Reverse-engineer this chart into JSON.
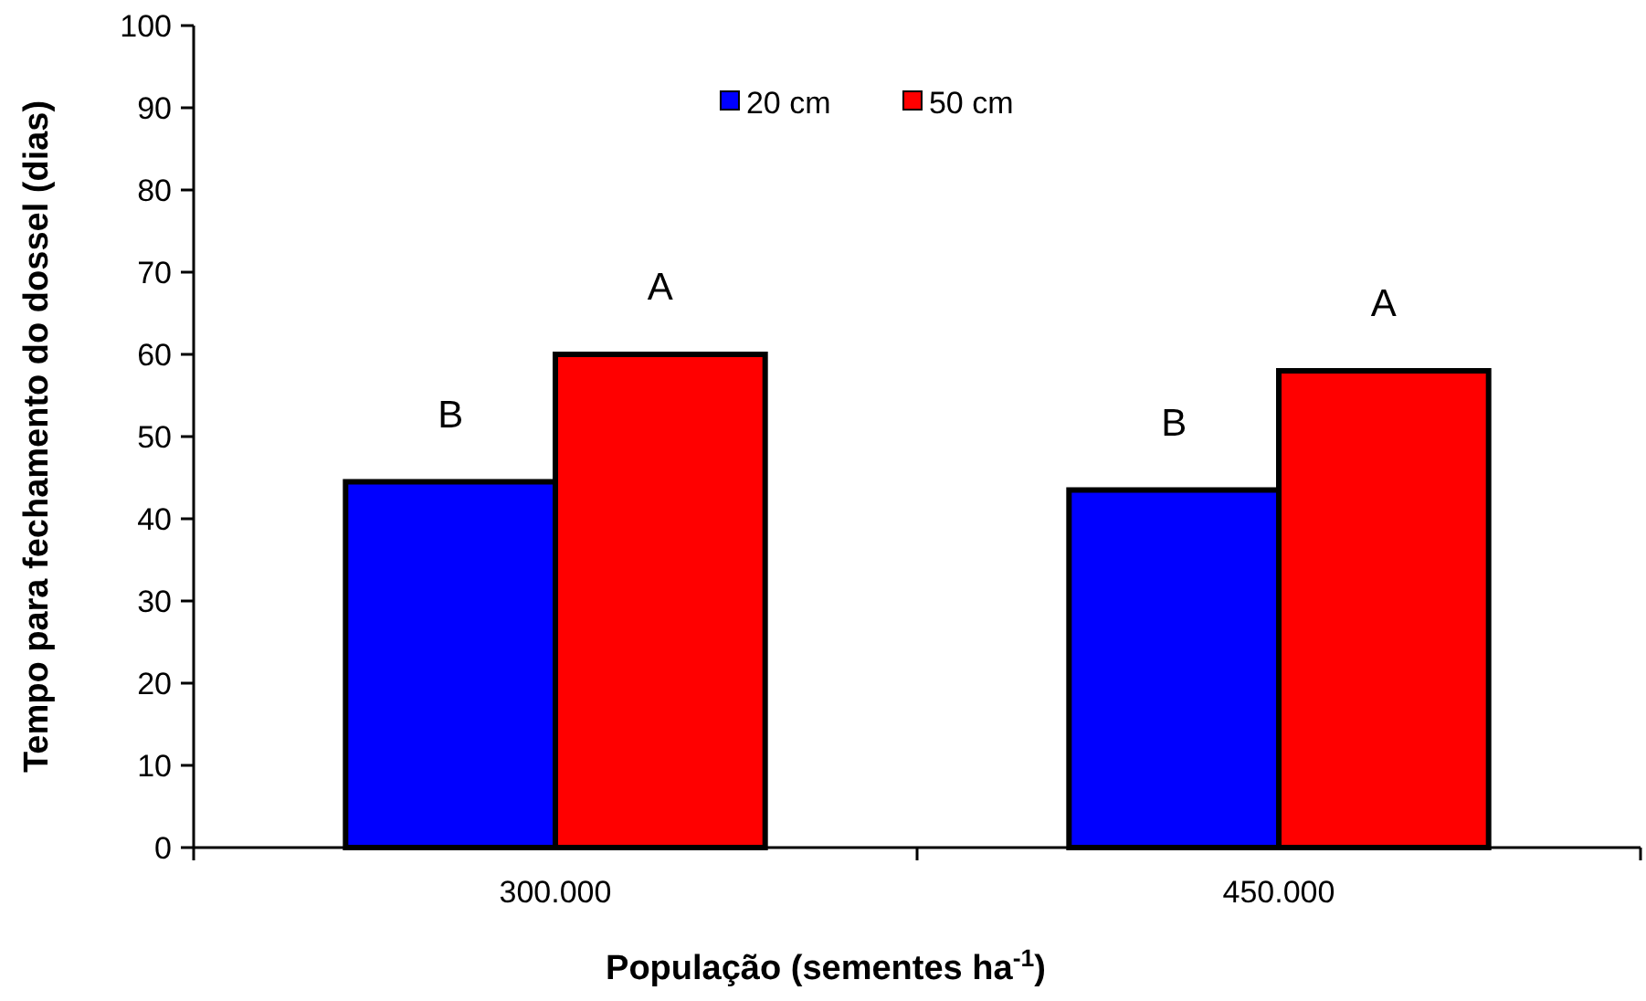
{
  "chart_data": {
    "type": "bar",
    "xlabel": "População (sementes ha$^{-1}$)",
    "ylabel": "Tempo para fechamento do dossel (dias)",
    "categories": [
      "300.000",
      "450.000"
    ],
    "series": [
      {
        "name": "20 cm",
        "color": "#0000ff",
        "values": [
          44.5,
          43.5
        ]
      },
      {
        "name": "50 cm",
        "color": "#ff0000",
        "values": [
          60,
          58
        ]
      }
    ],
    "ylim": [
      0,
      100
    ],
    "yticks": [
      0,
      10,
      20,
      30,
      40,
      50,
      60,
      70,
      80,
      90,
      100
    ],
    "grid": false,
    "legend": "top",
    "annotations": [
      {
        "text": "B",
        "x": "300.000",
        "y": 44.5
      },
      {
        "text": "A",
        "x": "300.000",
        "y": 60
      },
      {
        "text": "B",
        "x": "450.000",
        "y": 43.5
      },
      {
        "text": "A",
        "x": "450.000",
        "y": 58
      }
    ]
  }
}
